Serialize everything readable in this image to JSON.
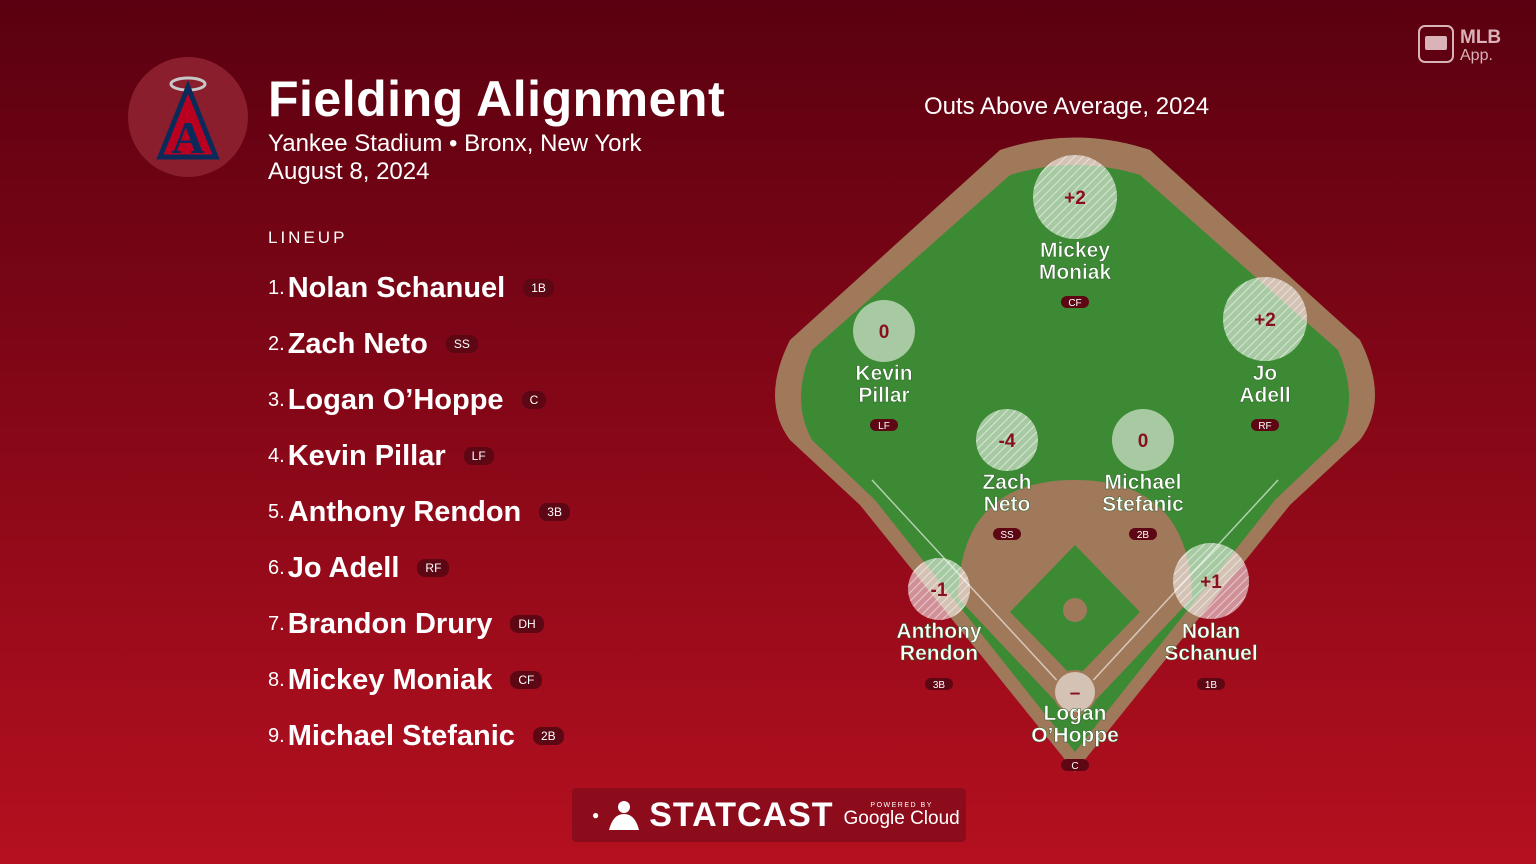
{
  "header": {
    "title": "Fielding Alignment",
    "venue": "Yankee Stadium • Bronx, New York",
    "date": "August 8, 2024"
  },
  "lineup": {
    "label": "LINEUP",
    "players": [
      {
        "num": "1.",
        "name": "Nolan Schanuel",
        "pos": "1B"
      },
      {
        "num": "2.",
        "name": "Zach Neto",
        "pos": "SS"
      },
      {
        "num": "3.",
        "name": "Logan O’Hoppe",
        "pos": "C"
      },
      {
        "num": "4.",
        "name": "Kevin Pillar",
        "pos": "LF"
      },
      {
        "num": "5.",
        "name": "Anthony Rendon",
        "pos": "3B"
      },
      {
        "num": "6.",
        "name": "Jo Adell",
        "pos": "RF"
      },
      {
        "num": "7.",
        "name": "Brandon Drury",
        "pos": "DH"
      },
      {
        "num": "8.",
        "name": "Mickey Moniak",
        "pos": "CF"
      },
      {
        "num": "9.",
        "name": "Michael Stefanic",
        "pos": "2B"
      }
    ]
  },
  "field": {
    "title": "Outs Above Average, 2024",
    "fielders": [
      {
        "key": "cf",
        "first": "Mickey",
        "last": "Moniak",
        "pos": "CF",
        "oaa": "+2"
      },
      {
        "key": "lf",
        "first": "Kevin",
        "last": "Pillar",
        "pos": "LF",
        "oaa": "0"
      },
      {
        "key": "rf",
        "first": "Jo",
        "last": "Adell",
        "pos": "RF",
        "oaa": "+2"
      },
      {
        "key": "ss",
        "first": "Zach",
        "last": "Neto",
        "pos": "SS",
        "oaa": "-4"
      },
      {
        "key": "2b",
        "first": "Michael",
        "last": "Stefanic",
        "pos": "2B",
        "oaa": "0"
      },
      {
        "key": "3b",
        "first": "Anthony",
        "last": "Rendon",
        "pos": "3B",
        "oaa": "-1"
      },
      {
        "key": "1b",
        "first": "Nolan",
        "last": "Schanuel",
        "pos": "1B",
        "oaa": "+1"
      },
      {
        "key": "c",
        "first": "Logan",
        "last": "O’Hoppe",
        "pos": "C",
        "oaa": "–"
      }
    ]
  },
  "branding": {
    "mlb_app_line1": "MLB",
    "mlb_app_line2": "App.",
    "statcast": "STATCAST",
    "powered_by": "POWERED BY",
    "google_cloud": "Google Cloud",
    "team_logo_letter": "A"
  },
  "colors": {
    "grass": "#3c8a34",
    "dirt": "#a0795a",
    "badge": "#5e0714"
  }
}
